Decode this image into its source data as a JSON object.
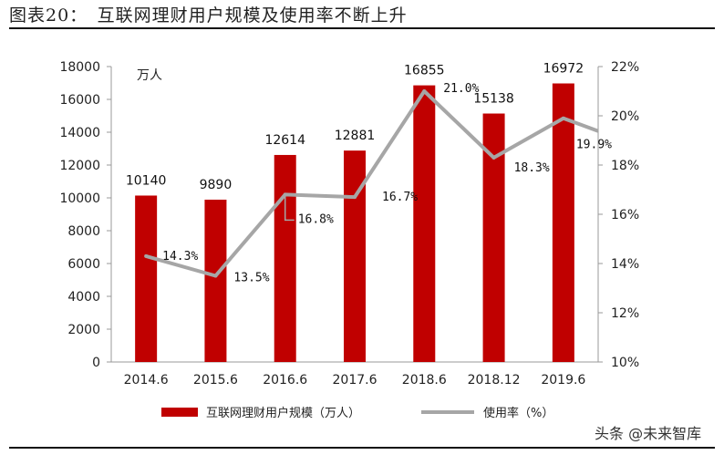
{
  "figure_title": "图表20：　互联网理财用户规模及使用率不断上升",
  "watermark": "头条 @未来智库",
  "colors": {
    "bar": "#c00000",
    "line": "#a6a6a6"
  },
  "chart_data": {
    "type": "bar+line",
    "categories": [
      "2014.6",
      "2015.6",
      "2016.6",
      "2017.6",
      "2018.6",
      "2018.12",
      "2019.6"
    ],
    "series": [
      {
        "name": "互联网理财用户规模（万人）",
        "type": "bar",
        "axis": "left",
        "values": [
          10140,
          9890,
          12614,
          12881,
          16855,
          15138,
          16972
        ],
        "labels": [
          "10140",
          "9890",
          "12614",
          "12881",
          "16855",
          "15138",
          "16972"
        ]
      },
      {
        "name": "使用率（%）",
        "type": "line",
        "axis": "right",
        "values": [
          14.3,
          13.5,
          16.8,
          16.7,
          21.0,
          18.3,
          19.9
        ],
        "labels": [
          "14.3%",
          "13.5%",
          "16.8%",
          "16.7%",
          "21.0%",
          "18.3%",
          "19.9%"
        ]
      }
    ],
    "left_axis": {
      "unit_label": "万人",
      "ylim": [
        0,
        18000
      ],
      "ticks": [
        "0",
        "2000",
        "4000",
        "6000",
        "8000",
        "10000",
        "12000",
        "14000",
        "16000",
        "18000"
      ]
    },
    "right_axis": {
      "ylim": [
        10,
        22
      ],
      "ticks": [
        "10%",
        "12%",
        "14%",
        "16%",
        "18%",
        "20%",
        "22%"
      ]
    },
    "grid": false,
    "legend_position": "bottom"
  }
}
